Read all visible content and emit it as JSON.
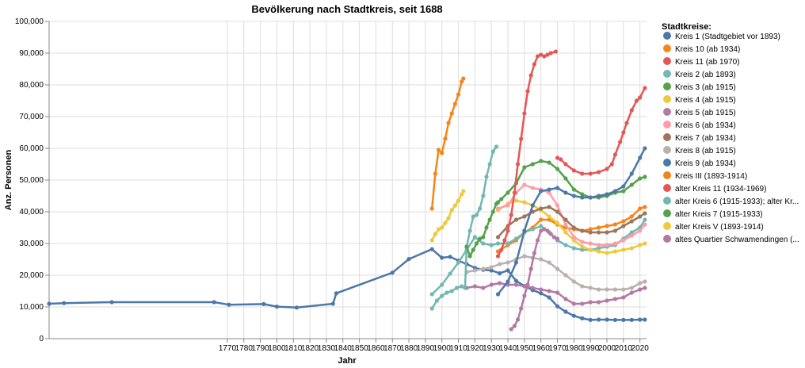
{
  "chart_data": {
    "type": "line",
    "title": "Bevölkerung nach Stadtkreis, seit 1688",
    "xlabel": "Jahr",
    "ylabel": "Anz. Personen",
    "xlim": [
      1662,
      2024
    ],
    "ylim": [
      0,
      100000
    ],
    "x_ticks": [
      1770,
      1780,
      1790,
      1800,
      1810,
      1820,
      1830,
      1840,
      1850,
      1860,
      1870,
      1880,
      1890,
      1900,
      1910,
      1920,
      1930,
      1940,
      1950,
      1960,
      1970,
      1980,
      1990,
      2000,
      2010,
      2020
    ],
    "y_ticks": [
      0,
      10000,
      20000,
      30000,
      40000,
      50000,
      60000,
      70000,
      80000,
      90000,
      100000
    ],
    "y_tick_labels": [
      "0",
      "10,000",
      "20,000",
      "30,000",
      "40,000",
      "50,000",
      "60,000",
      "70,000",
      "80,000",
      "90,000",
      "100,000"
    ],
    "grid": true,
    "legend_title": "Stadtkreise:",
    "legend_position": "right",
    "series": [
      {
        "name": "Kreis 1 (Stadtgebiet vor 1893)",
        "color": "#4c78a8",
        "x": [
          1662,
          1671,
          1700,
          1762,
          1771,
          1792,
          1800,
          1812,
          1834,
          1836,
          1870,
          1880,
          1894,
          1900,
          1905,
          1910,
          1915,
          1920,
          1925,
          1930,
          1935,
          1940,
          1945,
          1950,
          1955,
          1960,
          1965,
          1970,
          1975,
          1980,
          1985,
          1990,
          1995,
          2000,
          2005,
          2010,
          2015,
          2020,
          2023
        ],
        "y": [
          11000,
          11200,
          11500,
          11500,
          10700,
          10900,
          10100,
          9800,
          11000,
          14300,
          20800,
          25100,
          28200,
          25500,
          25800,
          24600,
          23500,
          22300,
          21700,
          21500,
          20600,
          21500,
          18200,
          16600,
          15300,
          14300,
          13000,
          10200,
          8500,
          7200,
          6400,
          5900,
          6000,
          6000,
          5900,
          5900,
          5900,
          6000,
          6000
        ]
      },
      {
        "name": "Kreis 10 (ab 1934)",
        "color": "#f58518",
        "x": [
          1934,
          1940,
          1945,
          1950,
          1955,
          1960,
          1965,
          1970,
          1975,
          1980,
          1985,
          1990,
          1995,
          2000,
          2005,
          2010,
          2015,
          2020,
          2023
        ],
        "y": [
          27500,
          29500,
          31000,
          33500,
          35000,
          37500,
          37500,
          36000,
          35000,
          34500,
          34000,
          34500,
          35000,
          35500,
          36000,
          37000,
          38500,
          41000,
          41500
        ]
      },
      {
        "name": "Kreis 11 (ab 1970)",
        "color": "#e45756",
        "x": [
          1970,
          1972,
          1975,
          1980,
          1985,
          1990,
          1995,
          2000,
          2003,
          2005,
          2008,
          2010,
          2012,
          2015,
          2018,
          2020,
          2023
        ],
        "y": [
          57000,
          56500,
          55000,
          53000,
          52000,
          52000,
          52500,
          53500,
          55000,
          58000,
          62000,
          65000,
          68000,
          72000,
          75000,
          76000,
          79000
        ]
      },
      {
        "name": "Kreis 2 (ab 1893)",
        "color": "#72b7b2",
        "x": [
          1894,
          1900,
          1905,
          1910,
          1915,
          1920,
          1925,
          1930,
          1934,
          1940,
          1945,
          1950,
          1955,
          1960,
          1965,
          1970,
          1975,
          1980,
          1985,
          1990,
          1995,
          2000,
          2005,
          2010,
          2015,
          2020,
          2023
        ],
        "y": [
          14000,
          17000,
          20500,
          24000,
          28000,
          32000,
          30000,
          29500,
          30000,
          30000,
          31500,
          33500,
          34500,
          35500,
          33500,
          31000,
          29500,
          28500,
          28000,
          28000,
          28500,
          29000,
          29500,
          31500,
          33500,
          35000,
          37500
        ]
      },
      {
        "name": "Kreis 3 (ab 1915)",
        "color": "#54a24b",
        "x": [
          1934,
          1936,
          1940,
          1945,
          1950,
          1955,
          1960,
          1965,
          1970,
          1975,
          1980,
          1985,
          1990,
          1995,
          2000,
          2005,
          2010,
          2015,
          2020,
          2023
        ],
        "y": [
          43000,
          44000,
          46000,
          49000,
          54000,
          55000,
          56000,
          55500,
          53500,
          50500,
          47000,
          45500,
          44500,
          44500,
          45000,
          46000,
          46500,
          48500,
          50500,
          51000
        ]
      },
      {
        "name": "Kreis 4 (ab 1915)",
        "color": "#eeca3b",
        "x": [
          1934,
          1940,
          1945,
          1950,
          1955,
          1960,
          1965,
          1970,
          1975,
          1980,
          1985,
          1990,
          1995,
          2000,
          2005,
          2010,
          2015,
          2020,
          2023
        ],
        "y": [
          40500,
          42500,
          43500,
          43000,
          42000,
          40500,
          38500,
          36500,
          33500,
          31000,
          29000,
          28000,
          27500,
          27000,
          27500,
          28000,
          28500,
          29500,
          30000
        ]
      },
      {
        "name": "Kreis 5 (ab 1915)",
        "color": "#b279a2",
        "x": [
          1915,
          1920,
          1925,
          1930,
          1935,
          1940,
          1945,
          1950,
          1955,
          1960,
          1965,
          1970,
          1975,
          1980,
          1985,
          1990,
          1995,
          2000,
          2005,
          2010,
          2015,
          2020,
          2023
        ],
        "y": [
          16000,
          16500,
          16000,
          17000,
          17500,
          17000,
          17000,
          16500,
          16000,
          15500,
          15000,
          14500,
          12500,
          11000,
          11000,
          11500,
          11500,
          12000,
          12500,
          13000,
          14500,
          15500,
          16000
        ]
      },
      {
        "name": "Kreis 6 (ab 1934)",
        "color": "#ff9da6",
        "x": [
          1934,
          1940,
          1945,
          1950,
          1955,
          1960,
          1965,
          1970,
          1975,
          1980,
          1985,
          1990,
          1995,
          2000,
          2005,
          2010,
          2015,
          2020,
          2023
        ],
        "y": [
          41000,
          42000,
          46000,
          48500,
          47500,
          47000,
          46000,
          42000,
          36000,
          32000,
          30500,
          30000,
          29500,
          29500,
          30000,
          31000,
          32500,
          34000,
          36000
        ]
      },
      {
        "name": "Kreis 7 (ab 1934)",
        "color": "#9d755d",
        "x": [
          1934,
          1940,
          1945,
          1950,
          1955,
          1960,
          1965,
          1970,
          1975,
          1980,
          1985,
          1990,
          1995,
          2000,
          2005,
          2010,
          2015,
          2020,
          2023
        ],
        "y": [
          32000,
          35500,
          37500,
          38500,
          40000,
          41000,
          41500,
          40000,
          37500,
          35000,
          34000,
          33500,
          33500,
          33500,
          34000,
          35500,
          37000,
          38500,
          39500
        ]
      },
      {
        "name": "Kreis 8 (ab 1915)",
        "color": "#bab0ac",
        "x": [
          1915,
          1920,
          1925,
          1930,
          1935,
          1940,
          1945,
          1950,
          1955,
          1960,
          1965,
          1970,
          1975,
          1980,
          1985,
          1990,
          1995,
          2000,
          2005,
          2010,
          2015,
          2020,
          2023
        ],
        "y": [
          21000,
          21500,
          22000,
          22500,
          23500,
          24000,
          25000,
          26000,
          25500,
          25000,
          24000,
          22000,
          20000,
          18000,
          16500,
          16000,
          15500,
          15500,
          15500,
          15500,
          16000,
          17500,
          18000
        ]
      },
      {
        "name": "Kreis 9 (ab 1934)",
        "color": "#4c78a8",
        "x": [
          1934,
          1940,
          1945,
          1950,
          1955,
          1960,
          1965,
          1970,
          1975,
          1980,
          1985,
          1990,
          1995,
          2000,
          2005,
          2010,
          2015,
          2020,
          2023
        ],
        "y": [
          14000,
          18000,
          24000,
          34000,
          42000,
          46500,
          47000,
          47500,
          46000,
          45000,
          44500,
          44500,
          45000,
          45500,
          46500,
          48000,
          52000,
          57000,
          60000
        ]
      },
      {
        "name": "Kreis III (1893-1914)",
        "color": "#f58518",
        "x": [
          1894,
          1896,
          1898,
          1900,
          1902,
          1904,
          1906,
          1908,
          1910,
          1912,
          1913
        ],
        "y": [
          41000,
          52000,
          59500,
          58500,
          63000,
          68000,
          71000,
          74000,
          77000,
          81000,
          82000
        ]
      },
      {
        "name": "alter Kreis 11 (1934-1969)",
        "color": "#e45756",
        "x": [
          1934,
          1936,
          1938,
          1940,
          1942,
          1944,
          1946,
          1948,
          1950,
          1952,
          1954,
          1956,
          1958,
          1960,
          1962,
          1964,
          1966,
          1969
        ],
        "y": [
          26000,
          28000,
          31000,
          34000,
          39000,
          46000,
          55000,
          63000,
          71000,
          78000,
          83000,
          86500,
          89000,
          89500,
          89000,
          89500,
          90000,
          90500
        ]
      },
      {
        "name": "alter Kreis 6 (1915-1933); alter Kreis IV (1893-1914)",
        "color": "#72b7b2",
        "x": [
          1894,
          1897,
          1900,
          1903,
          1906,
          1909,
          1912,
          1914,
          1915,
          1917,
          1919,
          1921,
          1923,
          1925,
          1927,
          1929,
          1931,
          1933
        ],
        "y": [
          9500,
          12000,
          13500,
          14500,
          15000,
          16000,
          16500,
          16000,
          29000,
          34000,
          38500,
          39000,
          41000,
          45000,
          51000,
          55000,
          59000,
          60500
        ]
      },
      {
        "name": "alter Kreis 7 (1915-1933)",
        "color": "#54a24b",
        "x": [
          1915,
          1917,
          1919,
          1921,
          1923,
          1925,
          1927,
          1929,
          1931,
          1933
        ],
        "y": [
          29000,
          26000,
          28000,
          30000,
          31500,
          32000,
          35000,
          37500,
          40000,
          42500
        ]
      },
      {
        "name": "alter Kreis V (1893-1914)",
        "color": "#eeca3b",
        "x": [
          1894,
          1896,
          1898,
          1900,
          1902,
          1904,
          1906,
          1908,
          1910,
          1912,
          1913
        ],
        "y": [
          31000,
          33000,
          34500,
          35000,
          36500,
          38000,
          40500,
          42000,
          43500,
          45500,
          46500
        ]
      },
      {
        "name": "altes Quartier Schwamendingen (...",
        "color": "#b279a2",
        "x": [
          1942,
          1944,
          1946,
          1948,
          1950,
          1952,
          1954,
          1956,
          1958,
          1960,
          1962,
          1964,
          1966,
          1968,
          1970
        ],
        "y": [
          3000,
          4000,
          6000,
          9500,
          13500,
          17000,
          22000,
          27000,
          31000,
          34000,
          34500,
          34000,
          33000,
          32000,
          31500
        ]
      }
    ],
    "legend_labels": [
      "Kreis 1 (Stadtgebiet vor 1893)",
      "Kreis 10 (ab 1934)",
      "Kreis 11 (ab 1970)",
      "Kreis 2 (ab 1893)",
      "Kreis 3 (ab 1915)",
      "Kreis 4 (ab 1915)",
      "Kreis 5 (ab 1915)",
      "Kreis 6 (ab 1934)",
      "Kreis 7 (ab 1934)",
      "Kreis 8 (ab 1915)",
      "Kreis 9 (ab 1934)",
      "Kreis III (1893-1914)",
      "alter Kreis 11 (1934-1969)",
      "alter Kreis 6 (1915-1933); alter Kr...",
      "alter Kreis 7 (1915-1933)",
      "alter Kreis V (1893-1914)",
      "altes Quartier Schwamendingen (..."
    ]
  }
}
